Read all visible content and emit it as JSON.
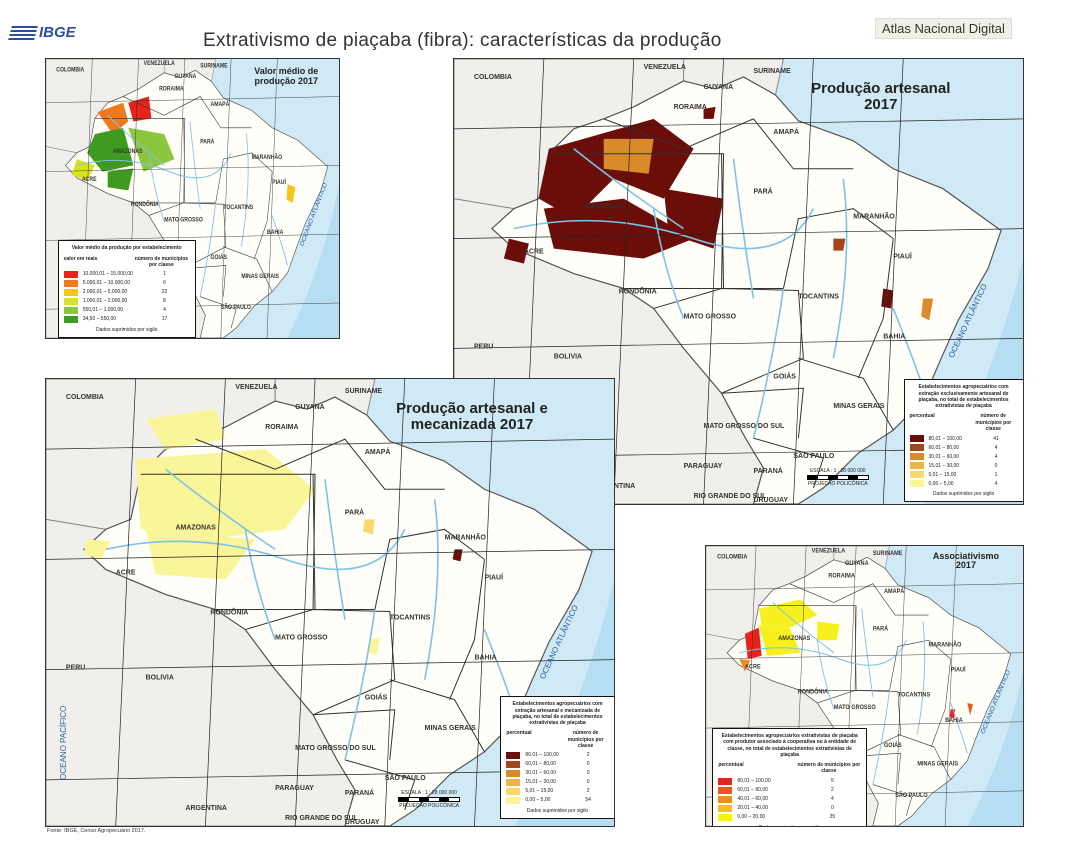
{
  "header": {
    "logo": "IBGE",
    "title": "Extrativismo de piaçaba (fibra): características da produção",
    "atlas_label": "Atlas Nacional Digital"
  },
  "map_labels": {
    "colombia": "COLOMBIA",
    "venezuela": "VENEZUELA",
    "guyana": "GUYANA",
    "suriname": "SURINAME",
    "peru": "PERU",
    "bolivia": "BOLIVIA",
    "paraguay": "PARAGUAY",
    "argentina": "ARGENTINA",
    "uruguay": "URUGUAY",
    "ocean": "OCEANO ATLÂNTICO",
    "pacific": "OCEANO PACÍFICO",
    "amazonas": "AMAZONAS",
    "para": "PARÁ",
    "matogrosso": "MATO GROSSO",
    "goias": "GOIÁS",
    "bahia": "BAHIA",
    "acre": "ACRE",
    "rondonia": "RONDÔNIA",
    "tocantins": "TOCANTINS",
    "minas": "MINAS GERAIS",
    "maranhao": "MARANHÃO",
    "piaui": "PIAUÍ",
    "amapa": "AMAPÁ",
    "roraima": "RORAIMA",
    "ms": "MATO GROSSO DO SUL",
    "sp": "SÃO PAULO",
    "parana": "PARANÁ",
    "rs": "RIO GRANDE DO SUL",
    "scale": "ESCALA : 1 : 28 000 000",
    "projection": "PROJEÇÃO POLICÔNICA"
  },
  "panels": [
    {
      "title": "Valor médio de produção 2017",
      "legend": {
        "title": "Valor médio da produção por estabelecimento",
        "col1": "valor em reais",
        "col2": "número de municípios por classe",
        "classes": [
          {
            "range": "10.000,01 – 15.000,00",
            "count": "1",
            "color": "#e8231b"
          },
          {
            "range": "5.000,01 – 10.000,00",
            "count": "6",
            "color": "#f07a1a"
          },
          {
            "range": "2.000,01 – 5.000,00",
            "count": "22",
            "color": "#f5c51e"
          },
          {
            "range": "1.000,01 – 2.000,00",
            "count": "8",
            "color": "#d9e41e"
          },
          {
            "range": "550,01 – 1.000,00",
            "count": "4",
            "color": "#8cc63f"
          },
          {
            "range": "34,50 – 550,00",
            "count": "17",
            "color": "#3f9b1f"
          }
        ],
        "note": "Dados suprimidos por sigilo"
      }
    },
    {
      "title": "Produção artesanal 2017",
      "legend": {
        "title": "Estabelecimentos agropecuários com extração exclusivamente artesanal de piaçaba, no total de estabelecimentos extrativistas de piaçaba",
        "col1": "percentual",
        "col2": "número de municípios por classe",
        "classes": [
          {
            "range": "80,01 – 100,00",
            "count": "41",
            "color": "#6b0e0a"
          },
          {
            "range": "60,01 – 80,00",
            "count": "4",
            "color": "#a3461b"
          },
          {
            "range": "30,01 – 60,00",
            "count": "4",
            "color": "#d98a2b"
          },
          {
            "range": "15,01 – 30,00",
            "count": "0",
            "color": "#f0b54a"
          },
          {
            "range": "5,01 – 15,00",
            "count": "1",
            "color": "#f8d96a"
          },
          {
            "range": "0,00 – 5,00",
            "count": "4",
            "color": "#fbf59a"
          }
        ],
        "note": "Dados suprimidos por sigilo"
      }
    },
    {
      "title": "Produção artesanal e mecanizada 2017",
      "legend": {
        "title": "Estabelecimentos agropecuários com extração artesanal e mecanizada de piaçaba, no total de estabelecimentos extrativistas de piaçaba",
        "col1": "percentual",
        "col2": "número de municípios por classe",
        "classes": [
          {
            "range": "80,01 – 100,00",
            "count": "2",
            "color": "#6b0e0a"
          },
          {
            "range": "60,01 – 80,00",
            "count": "0",
            "color": "#a3461b"
          },
          {
            "range": "30,01 – 60,00",
            "count": "0",
            "color": "#d98a2b"
          },
          {
            "range": "15,01 – 30,00",
            "count": "0",
            "color": "#f0b54a"
          },
          {
            "range": "5,01 – 15,00",
            "count": "2",
            "color": "#f8d96a"
          },
          {
            "range": "0,00 – 5,00",
            "count": "54",
            "color": "#fbf59a"
          }
        ],
        "note": "Dados suprimidos por sigilo"
      }
    },
    {
      "title": "Associativismo 2017",
      "legend": {
        "title": "Estabelecimentos agropecuários extrativistas de piaçaba com produtor associado à cooperativa ou à entidade de classe, no total de estabelecimentos extrativistas de piaçaba",
        "col1": "percentual",
        "col2": "número de municípios por classe",
        "classes": [
          {
            "range": "80,01 – 100,00",
            "count": "5",
            "color": "#e8231b"
          },
          {
            "range": "60,01 – 80,00",
            "count": "2",
            "color": "#f0561a"
          },
          {
            "range": "40,01 – 60,00",
            "count": "4",
            "color": "#f28c1a"
          },
          {
            "range": "20,01 – 40,00",
            "count": "0",
            "color": "#f5bf1e"
          },
          {
            "range": "0,00 – 20,00",
            "count": "35",
            "color": "#f5f01e"
          }
        ],
        "note": "Dados suprimidos por sigilo"
      }
    }
  ],
  "footer": "Fonte: IBGE, Censo Agropecuário 2017."
}
